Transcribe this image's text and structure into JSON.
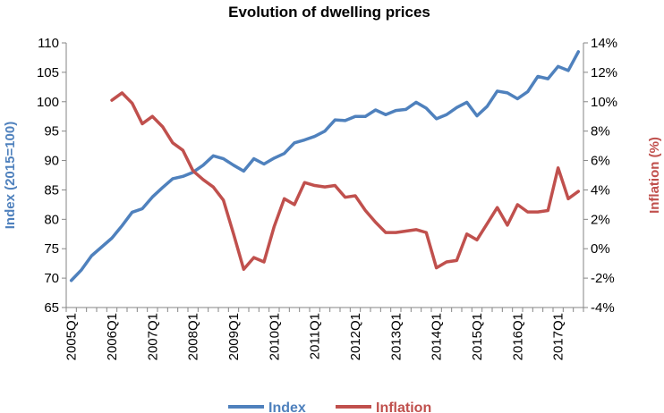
{
  "chart_data": {
    "type": "line",
    "title": "Evolution of dwelling prices",
    "ylabel_left": "Index (2015=100)",
    "ylabel_right": "Inflation (%)",
    "ylim_left": [
      65,
      110
    ],
    "yticks_left": [
      "65",
      "70",
      "75",
      "80",
      "85",
      "90",
      "95",
      "100",
      "105",
      "110"
    ],
    "ylim_right": [
      -4,
      14
    ],
    "yticks_right": [
      "-4%",
      "-2%",
      "0%",
      "2%",
      "4%",
      "6%",
      "8%",
      "10%",
      "12%",
      "14%"
    ],
    "x": [
      "2005Q1",
      "2005Q2",
      "2005Q3",
      "2005Q4",
      "2006Q1",
      "2006Q2",
      "2006Q3",
      "2006Q4",
      "2007Q1",
      "2007Q2",
      "2007Q3",
      "2007Q4",
      "2008Q1",
      "2008Q2",
      "2008Q3",
      "2008Q4",
      "2009Q1",
      "2009Q2",
      "2009Q3",
      "2009Q4",
      "2010Q1",
      "2010Q2",
      "2010Q3",
      "2010Q4",
      "2011Q1",
      "2011Q2",
      "2011Q3",
      "2011Q4",
      "2012Q1",
      "2012Q2",
      "2012Q3",
      "2012Q4",
      "2013Q1",
      "2013Q2",
      "2013Q3",
      "2013Q4",
      "2014Q1",
      "2014Q2",
      "2014Q3",
      "2014Q4",
      "2015Q1",
      "2015Q2",
      "2015Q3",
      "2015Q4",
      "2016Q1",
      "2016Q2",
      "2016Q3",
      "2016Q4",
      "2017Q1",
      "2017Q2",
      "2017Q3"
    ],
    "xtick_labels": [
      "2005Q1",
      "2006Q1",
      "2007Q1",
      "2008Q1",
      "2009Q1",
      "2010Q1",
      "2011Q1",
      "2012Q1",
      "2013Q1",
      "2014Q1",
      "2015Q1",
      "2016Q1",
      "2017Q1"
    ],
    "series": [
      {
        "name": "Index",
        "axis": "left",
        "color": "#4f81bd",
        "values": [
          69.6,
          71.4,
          73.8,
          75.3,
          76.8,
          78.9,
          81.2,
          81.8,
          83.8,
          85.4,
          86.9,
          87.3,
          88.0,
          89.2,
          90.8,
          90.3,
          89.2,
          88.2,
          90.3,
          89.4,
          90.4,
          91.2,
          93.0,
          93.5,
          94.1,
          95.0,
          96.9,
          96.8,
          97.5,
          97.5,
          98.6,
          97.8,
          98.5,
          98.7,
          99.9,
          98.9,
          97.1,
          97.8,
          99.0,
          99.9,
          97.6,
          99.2,
          101.8,
          101.5,
          100.5,
          101.7,
          104.3,
          103.9,
          106.0,
          105.3,
          108.5
        ]
      },
      {
        "name": "Inflation",
        "axis": "right",
        "color": "#c0504d",
        "values": [
          null,
          null,
          null,
          null,
          10.1,
          10.6,
          9.9,
          8.5,
          9.0,
          8.3,
          7.2,
          6.7,
          5.3,
          4.7,
          4.2,
          3.3,
          1.0,
          -1.4,
          -0.6,
          -0.9,
          1.5,
          3.4,
          3.0,
          4.5,
          4.3,
          4.2,
          4.3,
          3.5,
          3.6,
          2.6,
          1.8,
          1.1,
          1.1,
          1.2,
          1.3,
          1.1,
          -1.3,
          -0.9,
          -0.8,
          1.0,
          0.6,
          1.7,
          2.8,
          1.6,
          3.0,
          2.5,
          2.5,
          2.6,
          5.5,
          3.4,
          3.9
        ]
      }
    ],
    "grid": false,
    "legend_position": "bottom"
  }
}
